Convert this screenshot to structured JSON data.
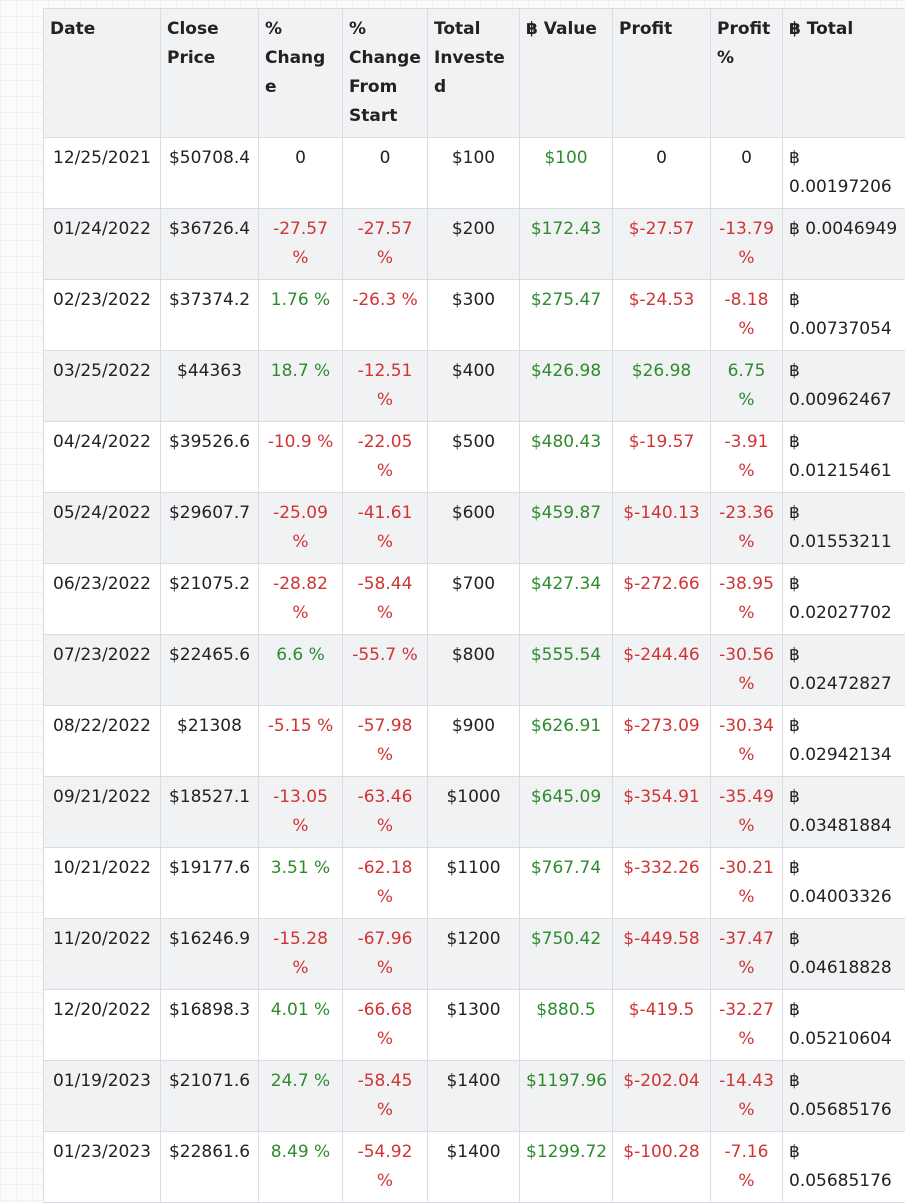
{
  "table": {
    "headers": [
      "Date",
      "Close Price",
      "% Change",
      "% Change From Start",
      "Total Invested",
      "฿ Value",
      "Profit",
      "Profit %",
      "฿ Total"
    ],
    "rows": [
      [
        "12/25/2021",
        "$50708.4",
        "0",
        "0",
        "$100",
        "$100",
        "0",
        "0",
        "฿ 0.00197206"
      ],
      [
        "01/24/2022",
        "$36726.4",
        "-27.57 %",
        "-27.57 %",
        "$200",
        "$172.43",
        "$-27.57",
        "-13.79 %",
        "฿ 0.0046949"
      ],
      [
        "02/23/2022",
        "$37374.2",
        "1.76 %",
        "-26.3 %",
        "$300",
        "$275.47",
        "$-24.53",
        "-8.18 %",
        "฿ 0.00737054"
      ],
      [
        "03/25/2022",
        "$44363",
        "18.7 %",
        "-12.51 %",
        "$400",
        "$426.98",
        "$26.98",
        "6.75 %",
        "฿ 0.00962467"
      ],
      [
        "04/24/2022",
        "$39526.6",
        "-10.9 %",
        "-22.05 %",
        "$500",
        "$480.43",
        "$-19.57",
        "-3.91 %",
        "฿ 0.01215461"
      ],
      [
        "05/24/2022",
        "$29607.7",
        "-25.09 %",
        "-41.61 %",
        "$600",
        "$459.87",
        "$-140.13",
        "-23.36 %",
        "฿ 0.01553211"
      ],
      [
        "06/23/2022",
        "$21075.2",
        "-28.82 %",
        "-58.44 %",
        "$700",
        "$427.34",
        "$-272.66",
        "-38.95 %",
        "฿ 0.02027702"
      ],
      [
        "07/23/2022",
        "$22465.6",
        "6.6 %",
        "-55.7 %",
        "$800",
        "$555.54",
        "$-244.46",
        "-30.56 %",
        "฿ 0.02472827"
      ],
      [
        "08/22/2022",
        "$21308",
        "-5.15 %",
        "-57.98 %",
        "$900",
        "$626.91",
        "$-273.09",
        "-30.34 %",
        "฿ 0.02942134"
      ],
      [
        "09/21/2022",
        "$18527.1",
        "-13.05 %",
        "-63.46 %",
        "$1000",
        "$645.09",
        "$-354.91",
        "-35.49 %",
        "฿ 0.03481884"
      ],
      [
        "10/21/2022",
        "$19177.6",
        "3.51 %",
        "-62.18 %",
        "$1100",
        "$767.74",
        "$-332.26",
        "-30.21 %",
        "฿ 0.04003326"
      ],
      [
        "11/20/2022",
        "$16246.9",
        "-15.28 %",
        "-67.96 %",
        "$1200",
        "$750.42",
        "$-449.58",
        "-37.47 %",
        "฿ 0.04618828"
      ],
      [
        "12/20/2022",
        "$16898.3",
        "4.01 %",
        "-66.68 %",
        "$1300",
        "$880.5",
        "$-419.5",
        "-32.27 %",
        "฿ 0.05210604"
      ],
      [
        "01/19/2023",
        "$21071.6",
        "24.7 %",
        "-58.45 %",
        "$1400",
        "$1197.96",
        "$-202.04",
        "-14.43 %",
        "฿ 0.05685176"
      ],
      [
        "01/23/2023",
        "$22861.6",
        "8.49 %",
        "-54.92 %",
        "$1400",
        "$1299.72",
        "$-100.28",
        "-7.16 %",
        "฿ 0.05685176"
      ]
    ]
  }
}
